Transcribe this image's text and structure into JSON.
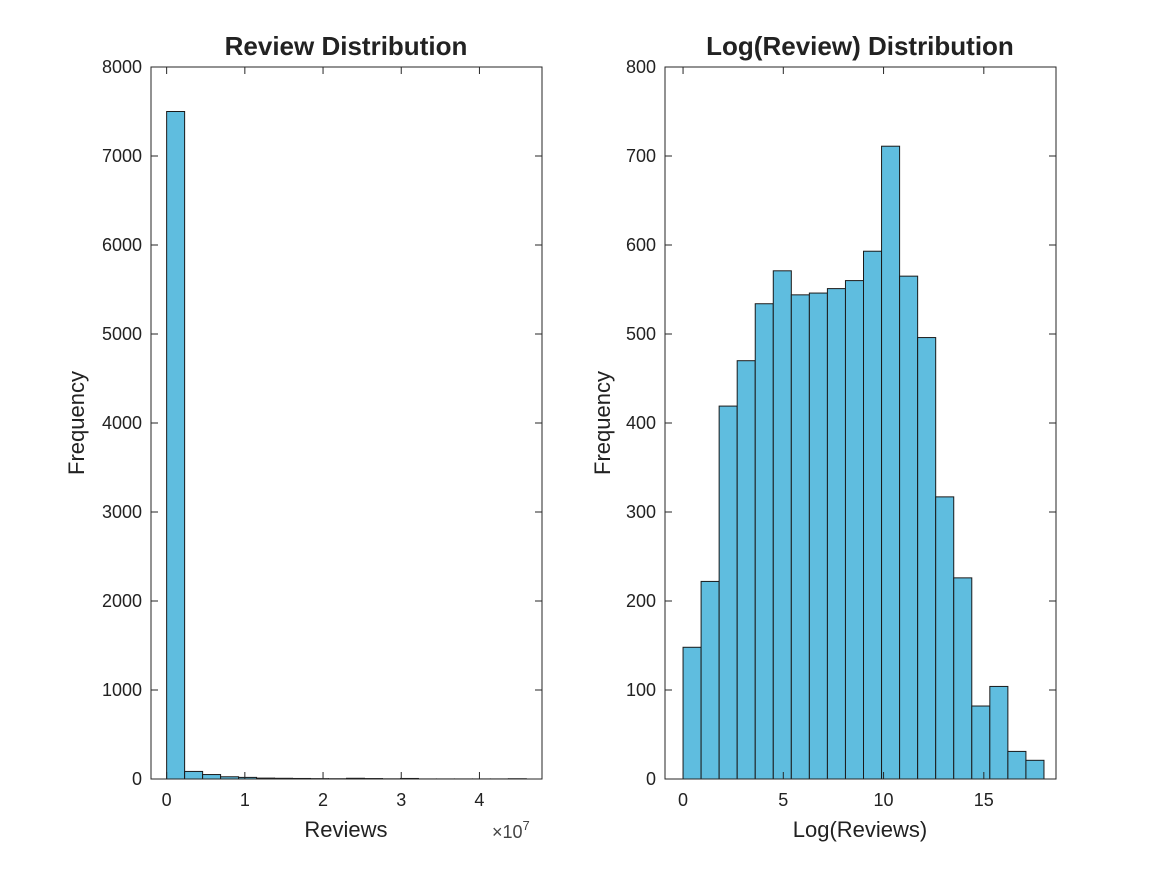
{
  "colors": {
    "bar_fill": "#5FBDDF",
    "bar_edge": "#1A1A1A",
    "axes": "#262626",
    "background": "#FFFFFF"
  },
  "chart_data": [
    {
      "type": "bar",
      "title": "Review Distribution",
      "xlabel": "Reviews",
      "ylabel": "Frequency",
      "x_exponent_label": "×10",
      "x_exponent_power": "7",
      "xlim": [
        -2000000.0,
        48000000.0
      ],
      "ylim": [
        0,
        8000
      ],
      "xticks": [
        0,
        10000000,
        20000000,
        30000000,
        40000000
      ],
      "xtick_labels": [
        "0",
        "1",
        "2",
        "3",
        "4"
      ],
      "yticks": [
        0,
        1000,
        2000,
        3000,
        4000,
        5000,
        6000,
        7000,
        8000
      ],
      "ytick_labels": [
        "0",
        "1000",
        "2000",
        "3000",
        "4000",
        "5000",
        "6000",
        "7000",
        "8000"
      ],
      "bin_edges": [
        0,
        2300000,
        4600000,
        6900000,
        9200000,
        11500000,
        13800000,
        16100000,
        18400000,
        20700000,
        23000000,
        25300000,
        27600000,
        29900000,
        32200000,
        34500000,
        36800000,
        39100000,
        41400000,
        43700000,
        46000000
      ],
      "values": [
        7500,
        85,
        50,
        25,
        18,
        10,
        8,
        6,
        4,
        3,
        8,
        5,
        2,
        6,
        1,
        1,
        1,
        1,
        1,
        3
      ],
      "grid": false
    },
    {
      "type": "bar",
      "title": "Log(Review) Distribution",
      "xlabel": "Log(Reviews)",
      "ylabel": "Frequency",
      "xlim": [
        -0.9,
        18.6
      ],
      "ylim": [
        0,
        800
      ],
      "xticks": [
        0,
        5,
        10,
        15
      ],
      "xtick_labels": [
        "0",
        "5",
        "10",
        "15"
      ],
      "yticks": [
        0,
        100,
        200,
        300,
        400,
        500,
        600,
        700,
        800
      ],
      "ytick_labels": [
        "0",
        "100",
        "200",
        "300",
        "400",
        "500",
        "600",
        "700",
        "800"
      ],
      "bin_edges": [
        0,
        0.9,
        1.8,
        2.7,
        3.6,
        4.5,
        5.4,
        6.3,
        7.2,
        8.1,
        9.0,
        9.9,
        10.8,
        11.7,
        12.6,
        13.5,
        14.4,
        15.3,
        16.2,
        17.1,
        18.0
      ],
      "values": [
        148,
        222,
        419,
        470,
        534,
        571,
        544,
        546,
        551,
        560,
        593,
        711,
        565,
        496,
        317,
        226,
        82,
        104,
        31,
        21
      ],
      "grid": false
    }
  ]
}
